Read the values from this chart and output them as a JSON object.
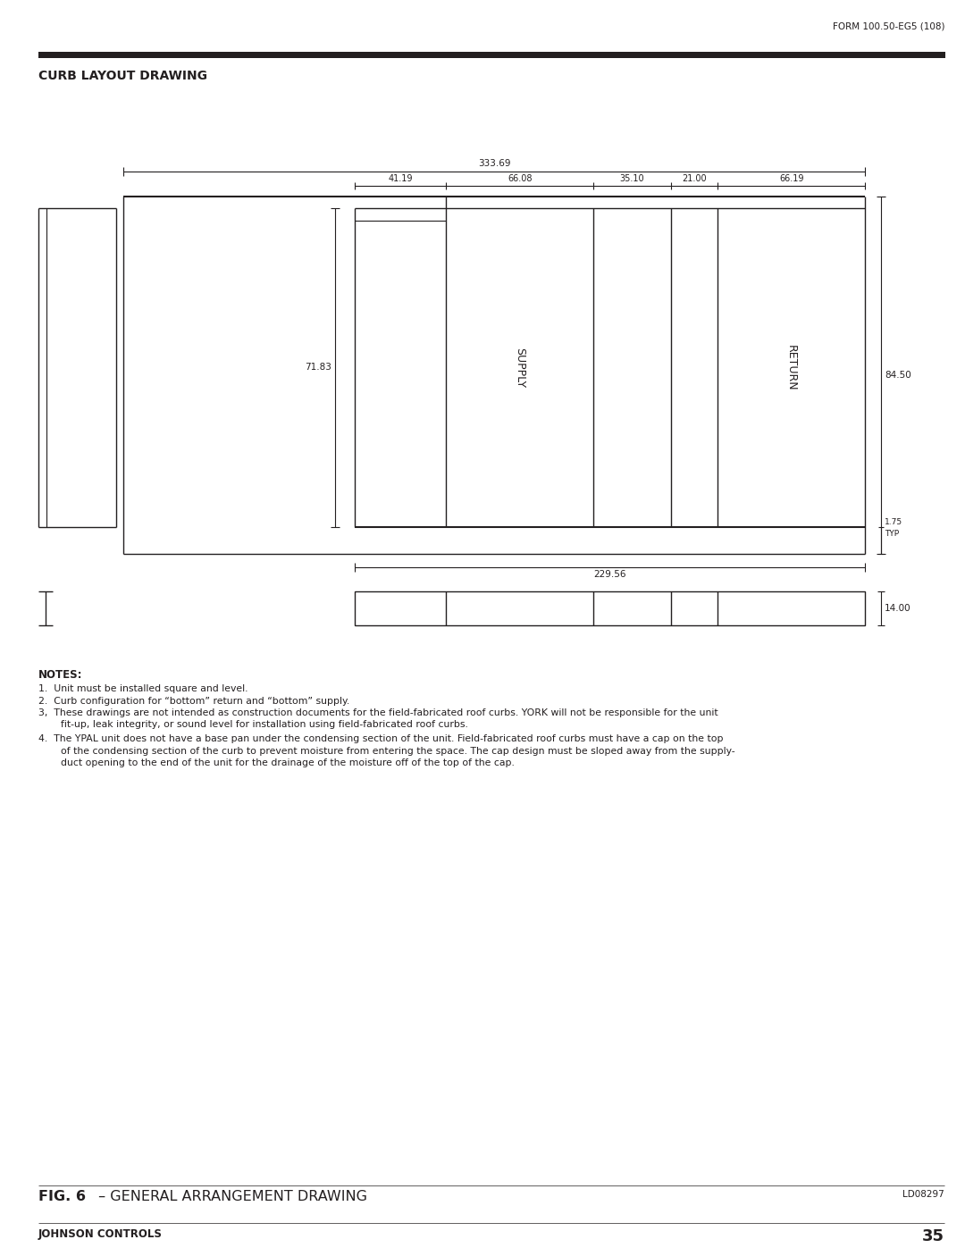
{
  "header_right": "FORM 100.50-EG5 (108)",
  "section_title": "CURB LAYOUT DRAWING",
  "fig_caption_bold": "FIG. 6",
  "fig_caption_normal": " – GENERAL ARRANGEMENT DRAWING",
  "fig_code": "LD08297",
  "company": "JOHNSON CONTROLS",
  "page_number": "35",
  "dim_total": "333.69",
  "dim_41": "41.19",
  "dim_66a": "66.08",
  "dim_35": "35.10",
  "dim_21": "21.00",
  "dim_66b": "66.19",
  "dim_left": "71.83",
  "dim_right": "84.50",
  "dim_bottom_inner": "229.56",
  "dim_side": "14.00",
  "label_supply": "SUPPLY",
  "label_return": "RETURN",
  "notes_title": "NOTES:",
  "note1": "Unit must be installed square and level.",
  "note2": "Curb configuration for “bottom” return and “bottom” supply.",
  "note3a": "These drawings are not intended as construction documents for the field-fabricated roof curbs. YORK will not be responsible for the unit",
  "note3b": "fit-up, leak integrity, or sound level for installation using field-fabricated roof curbs.",
  "note4a": "The YPAL unit does not have a base pan under the condensing section of the unit. Field-fabricated roof curbs must have a cap on the top",
  "note4b": "of the condensing section of the curb to prevent moisture from entering the space. The cap design must be sloped away from the supply-",
  "note4c": "duct opening to the end of the unit for the drainage of the moisture off of the top of the cap.",
  "line_color": "#231f20",
  "bg_color": "#ffffff",
  "header_bar_color": "#231f20"
}
